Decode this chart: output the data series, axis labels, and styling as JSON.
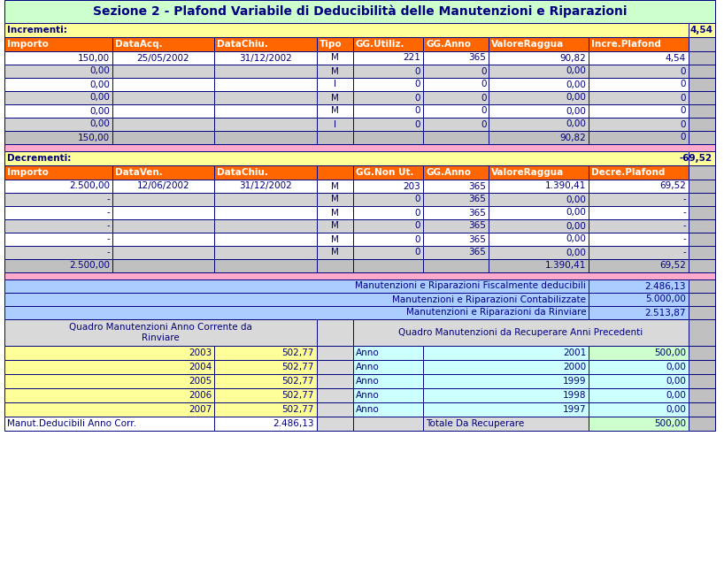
{
  "title": "Sezione 2 - Plafond Variabile di Deducibilità delle Manutenzioni e Riparazioni",
  "title_bg": "#ccffcc",
  "title_color": "#000080",
  "incrementi_label": "Incrementi:",
  "incrementi_value": "4,54",
  "incrementi_bg": "#ffff99",
  "inc_headers": [
    "Importo",
    "DataAcq.",
    "DataChiu.",
    "Tipo",
    "GG.Utiliz.",
    "GG.Anno",
    "ValoreRaggua",
    "Incre.Plafond"
  ],
  "inc_header_bg": "#ff6600",
  "inc_header_color": "#ffffff",
  "inc_rows": [
    [
      "150,00",
      "25/05/2002",
      "31/12/2002",
      "M",
      "221",
      "365",
      "90,82",
      "4,54"
    ],
    [
      "0,00",
      "",
      "",
      "M",
      "0",
      "0",
      "0,00",
      "0"
    ],
    [
      "0,00",
      "",
      "",
      "I",
      "0",
      "0",
      "0,00",
      "0"
    ],
    [
      "0,00",
      "",
      "",
      "M",
      "0",
      "0",
      "0,00",
      "0"
    ],
    [
      "0,00",
      "",
      "",
      "M",
      "0",
      "0",
      "0,00",
      "0"
    ],
    [
      "0,00",
      "",
      "",
      "I",
      "0",
      "0",
      "0,00",
      "0"
    ],
    [
      "150,00",
      "",
      "",
      "",
      "",
      "",
      "90,82",
      "0"
    ]
  ],
  "sep_pink": "#ffaacc",
  "decrementi_label": "Decrementi:",
  "decrementi_value": "-69,52",
  "decrementi_bg": "#ffff99",
  "dec_headers": [
    "Importo",
    "DataVen.",
    "DataChiu.",
    "",
    "GG.Non Ut.",
    "GG.Anno",
    "ValoreRaggua",
    "Decre.Plafond"
  ],
  "dec_header_bg": "#ff6600",
  "dec_header_color": "#ffffff",
  "dec_rows": [
    [
      "2.500,00",
      "12/06/2002",
      "31/12/2002",
      "M",
      "203",
      "365",
      "1.390,41",
      "69,52"
    ],
    [
      "-",
      "",
      "",
      "M",
      "0",
      "365",
      "0,00",
      "-"
    ],
    [
      "-",
      "",
      "",
      "M",
      "0",
      "365",
      "0,00",
      "-"
    ],
    [
      "-",
      "",
      "",
      "M",
      "0",
      "365",
      "0,00",
      "-"
    ],
    [
      "-",
      "",
      "",
      "M",
      "0",
      "365",
      "0,00",
      "-"
    ],
    [
      "-",
      "",
      "",
      "M",
      "0",
      "365",
      "0,00",
      "-"
    ],
    [
      "2.500,00",
      "",
      "",
      "",
      "",
      "",
      "1.390,41",
      "69,52"
    ]
  ],
  "summary_rows": [
    {
      "label": "Manutenzioni e Riparazioni Fiscalmente deducibili",
      "value": "2.486,13",
      "bg": "#aaccff"
    },
    {
      "label": "Manutenzioni e Riparazioni Contabilizzate",
      "value": "5.000,00",
      "bg": "#aaccff"
    },
    {
      "label": "Manutenzioni e Riparazioni da Rinviare",
      "value": "2.513,87",
      "bg": "#aaccff"
    }
  ],
  "quadro_left_header": "Quadro Manutenzioni Anno Corrente da\nRinviare",
  "quadro_right_header": "Quadro Manutenzioni da Recuperare Anni Precedenti",
  "quadro_header_bg": "#d9d9d9",
  "left_rows": [
    [
      "2003",
      "502,77"
    ],
    [
      "2004",
      "502,77"
    ],
    [
      "2005",
      "502,77"
    ],
    [
      "2006",
      "502,77"
    ],
    [
      "2007",
      "502,77"
    ],
    [
      "Manut.Deducibili Anno Corr.",
      "2.486,13"
    ]
  ],
  "left_row_bg": "#ffff99",
  "left_last_bg": "#ffffff",
  "right_rows": [
    [
      "Anno",
      "2001",
      "500,00"
    ],
    [
      "Anno",
      "2000",
      "0,00"
    ],
    [
      "Anno",
      "1999",
      "0,00"
    ],
    [
      "Anno",
      "1998",
      "0,00"
    ],
    [
      "Anno",
      "1997",
      "0,00"
    ],
    [
      "",
      "Totale Da Recuperare",
      "500,00"
    ]
  ],
  "right_row_bg": "#ccffff",
  "right_first_val_bg": "#ccffcc",
  "right_last_val_bg": "#ccffcc",
  "border_color": "#000080",
  "text_color": "#000080",
  "font_size": 7.5
}
